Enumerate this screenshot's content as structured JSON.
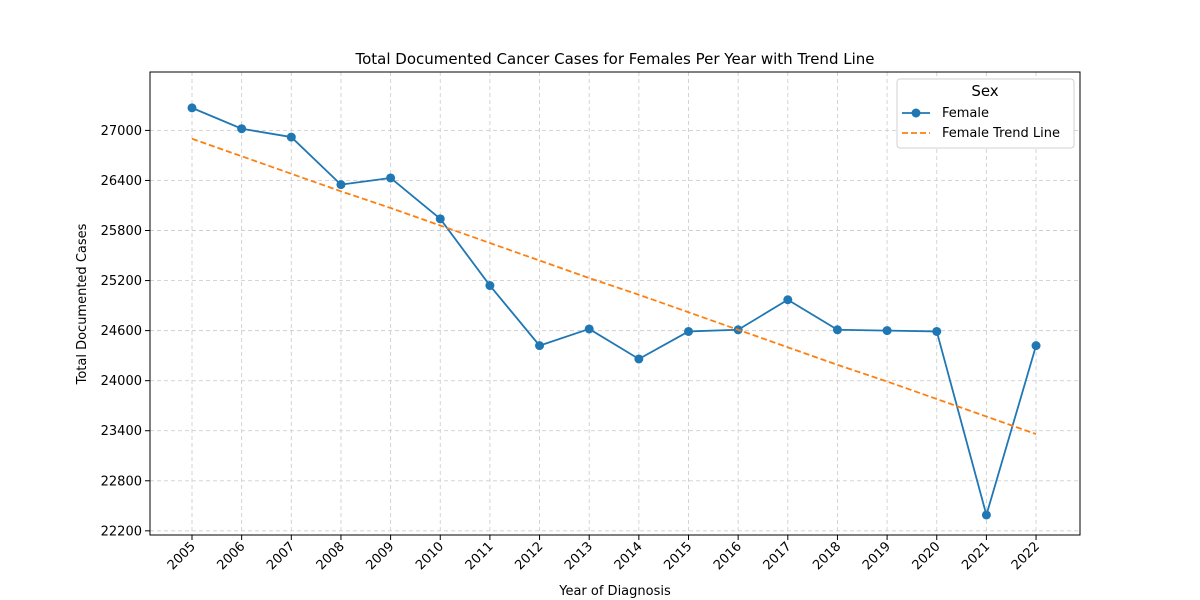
{
  "chart_data": {
    "type": "line",
    "title": "Total Documented Cancer Cases for Females Per Year with Trend Line",
    "xlabel": "Year of Diagnosis",
    "ylabel": "Total Documented Cases",
    "x": [
      "2005",
      "2006",
      "2007",
      "2008",
      "2009",
      "2010",
      "2011",
      "2012",
      "2013",
      "2014",
      "2015",
      "2016",
      "2017",
      "2018",
      "2019",
      "2020",
      "2021",
      "2022"
    ],
    "ylim": [
      22150,
      27700
    ],
    "yticks": [
      "22200",
      "22800",
      "23400",
      "24000",
      "24600",
      "25200",
      "25800",
      "26400",
      "27000"
    ],
    "grid": true,
    "legend": {
      "title": "Sex",
      "placement": "top-right"
    },
    "series": [
      {
        "name": "Female",
        "style": "solid-with-markers",
        "color": "#1f77b4",
        "values": [
          27270,
          27020,
          26920,
          26350,
          26430,
          25940,
          25140,
          24420,
          24620,
          24260,
          24590,
          24610,
          24970,
          24610,
          24600,
          24590,
          22390,
          24420
        ]
      },
      {
        "name": "Female Trend Line",
        "style": "dashed",
        "color": "#ff7f0e",
        "values": [
          26900,
          26690,
          26480,
          26270,
          26070,
          25860,
          25650,
          25440,
          25230,
          25030,
          24820,
          24610,
          24400,
          24190,
          23990,
          23780,
          23570,
          23360
        ]
      }
    ]
  }
}
